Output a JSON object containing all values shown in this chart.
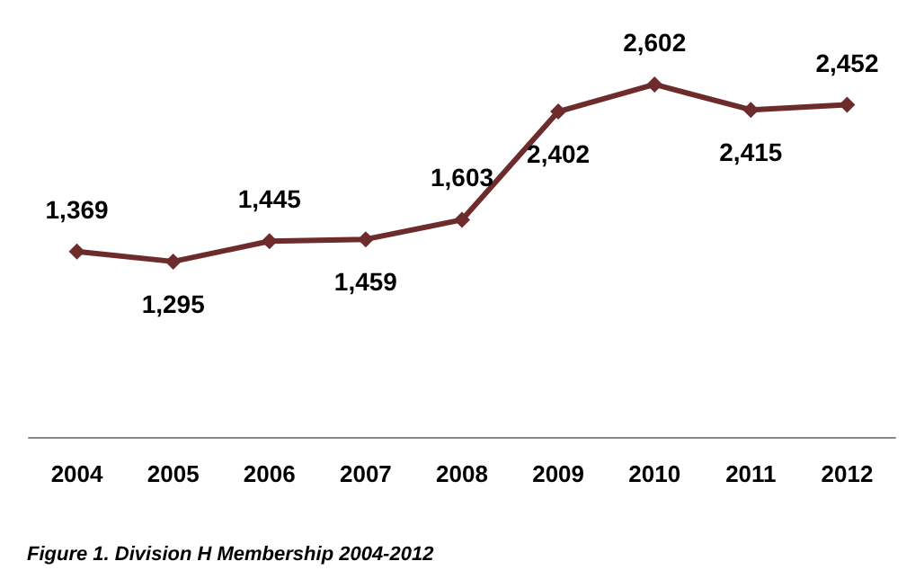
{
  "chart_data": {
    "type": "line",
    "title": "Figure 1. Division H Membership 2004-2012",
    "categories": [
      "2004",
      "2005",
      "2006",
      "2007",
      "2008",
      "2009",
      "2010",
      "2011",
      "2012"
    ],
    "series": [
      {
        "color": "#6e2b2b",
        "values": [
          1369,
          1295,
          1445,
          1459,
          1603,
          2402,
          2602,
          2415,
          2452
        ],
        "value_labels": [
          "1,369",
          "1,295",
          "1,445",
          "1,459",
          "1,603",
          "2,402",
          "2,602",
          "2,415",
          "2,452"
        ]
      }
    ],
    "marker": "diamond",
    "line_style": "solid",
    "grid": false,
    "tick_labels": "x"
  }
}
